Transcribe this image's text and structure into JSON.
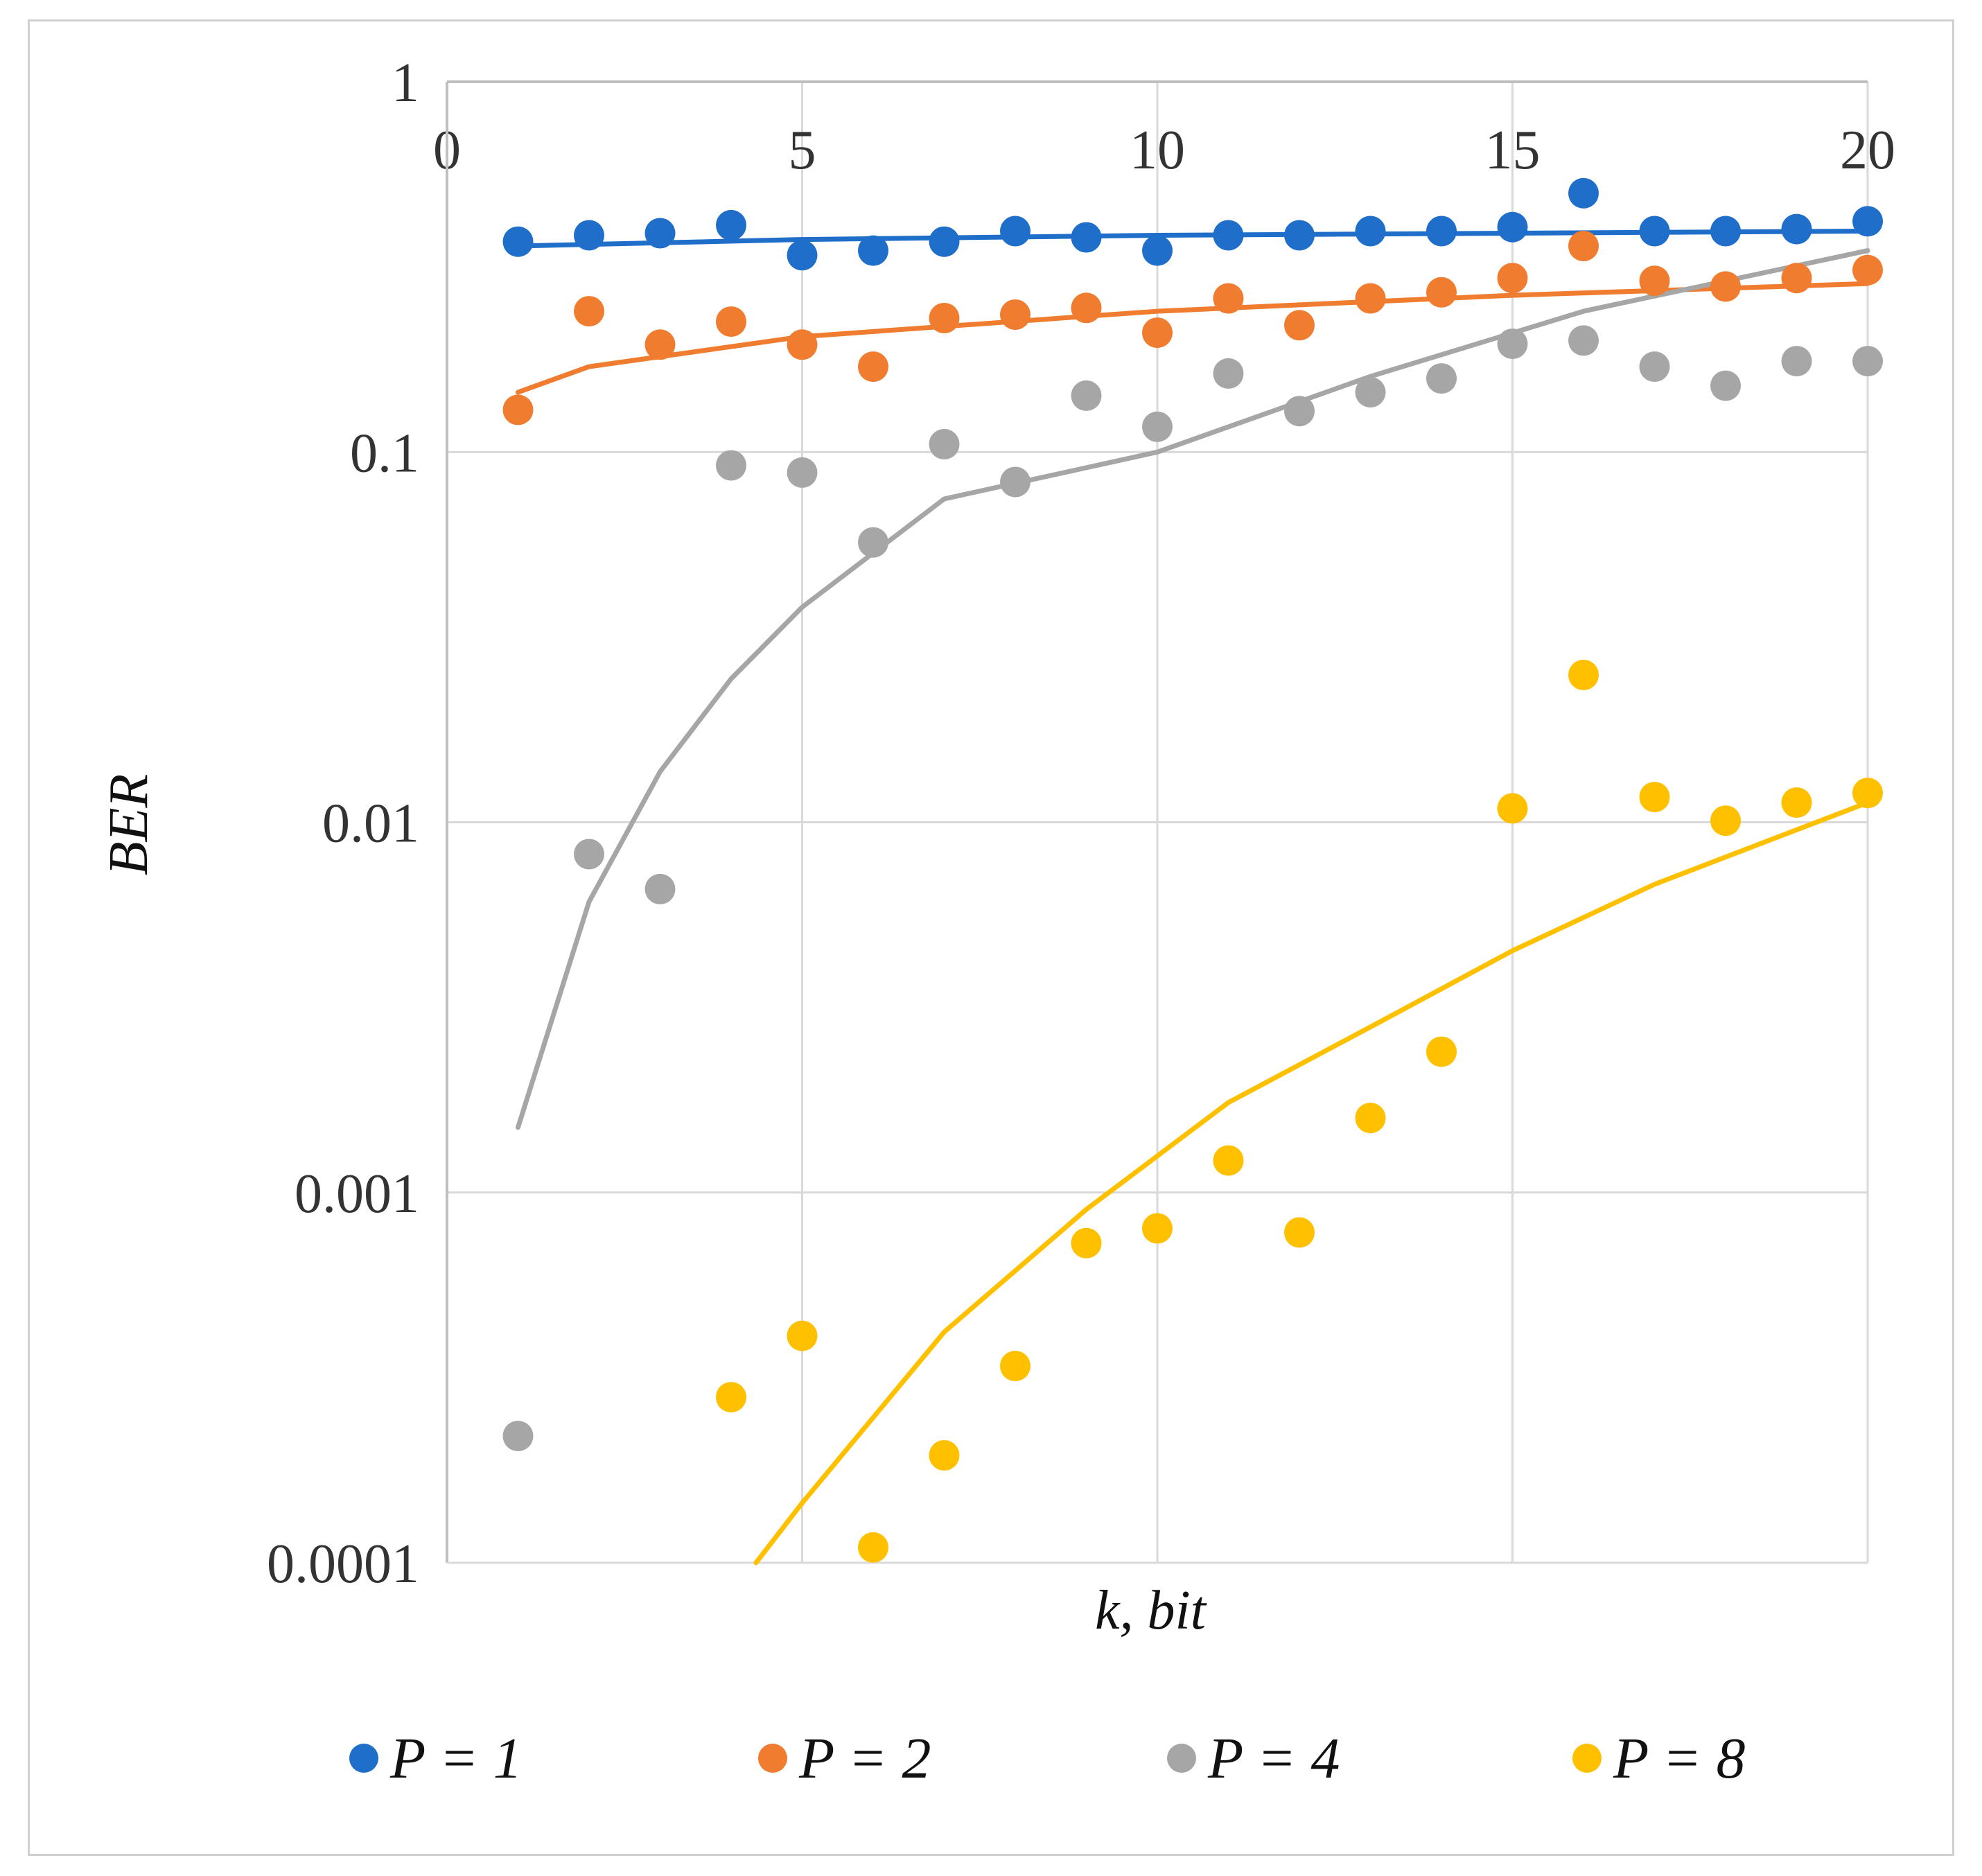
{
  "chart_data": {
    "type": "scatter",
    "title": "",
    "xlabel": "k, bit",
    "ylabel": "BER",
    "xlim": [
      0,
      20
    ],
    "ylim": [
      0.0001,
      1
    ],
    "yscale": "log",
    "x_ticks": [
      "0",
      "5",
      "10",
      "15",
      "20"
    ],
    "y_ticks": [
      "1",
      "0.1",
      "0.01",
      "0.001",
      "0.0001"
    ],
    "grid": true,
    "x_axis_position": "top",
    "legend_position": "bottom",
    "series": [
      {
        "name": "P = 1",
        "color": "#1f6ec9",
        "x": [
          1,
          2,
          3,
          4,
          5,
          6,
          7,
          8,
          9,
          10,
          11,
          12,
          13,
          14,
          15,
          16,
          17,
          18,
          19,
          20
        ],
        "values": [
          0.37,
          0.385,
          0.39,
          0.41,
          0.34,
          0.35,
          0.37,
          0.395,
          0.38,
          0.35,
          0.385,
          0.385,
          0.395,
          0.395,
          0.405,
          0.5,
          0.395,
          0.395,
          0.4,
          0.42
        ],
        "trendline": {
          "type": "log",
          "from": 1,
          "to": 20,
          "points": [
            [
              1,
              0.36
            ],
            [
              5,
              0.375
            ],
            [
              10,
              0.385
            ],
            [
              15,
              0.39
            ],
            [
              20,
              0.395
            ]
          ]
        }
      },
      {
        "name": "P = 2",
        "color": "#f07c2f",
        "x": [
          1,
          2,
          3,
          4,
          5,
          6,
          7,
          8,
          9,
          10,
          11,
          12,
          13,
          14,
          15,
          16,
          17,
          18,
          19,
          20
        ],
        "values": [
          0.13,
          0.24,
          0.195,
          0.225,
          0.195,
          0.17,
          0.23,
          0.235,
          0.245,
          0.21,
          0.26,
          0.22,
          0.26,
          0.27,
          0.295,
          0.36,
          0.29,
          0.28,
          0.295,
          0.31
        ],
        "trendline": {
          "type": "log",
          "from": 1,
          "to": 20,
          "points": [
            [
              1,
              0.145
            ],
            [
              2,
              0.17
            ],
            [
              5,
              0.205
            ],
            [
              10,
              0.24
            ],
            [
              15,
              0.265
            ],
            [
              20,
              0.285
            ]
          ]
        }
      },
      {
        "name": "P = 4",
        "color": "#a6a6a6",
        "x": [
          1,
          2,
          3,
          4,
          5,
          6,
          7,
          8,
          9,
          10,
          11,
          12,
          13,
          14,
          15,
          16,
          17,
          18,
          19,
          20
        ],
        "values": [
          0.00022,
          0.0082,
          0.0066,
          0.092,
          0.088,
          0.057,
          0.105,
          0.083,
          0.142,
          0.117,
          0.163,
          0.129,
          0.145,
          0.158,
          0.196,
          0.2,
          0.17,
          0.151,
          0.176,
          0.176
        ],
        "trendline": {
          "type": "power",
          "from": 1,
          "to": 20,
          "points": [
            [
              1,
              0.0015
            ],
            [
              2,
              0.0061
            ],
            [
              3,
              0.0137
            ],
            [
              4,
              0.0244
            ],
            [
              5,
              0.0381
            ],
            [
              7,
              0.0747
            ],
            [
              10,
              0.1
            ],
            [
              13,
              0.16
            ],
            [
              16,
              0.24
            ],
            [
              20,
              0.35
            ]
          ]
        }
      },
      {
        "name": "P = 8",
        "color": "#ffc000",
        "x": [
          4,
          5,
          6,
          7,
          8,
          9,
          10,
          11,
          12,
          13,
          14,
          15,
          16,
          17,
          18,
          19,
          20
        ],
        "values": [
          0.00028,
          0.00041,
          0.00011,
          0.000195,
          0.00034,
          0.00073,
          0.0008,
          0.00122,
          0.00078,
          0.00159,
          0.0024,
          0.0109,
          0.025,
          0.0117,
          0.0101,
          0.0113,
          0.012
        ],
        "trendline": {
          "type": "power",
          "from": 4.35,
          "to": 20,
          "points": [
            [
              4.35,
              0.0001
            ],
            [
              5,
              0.000145
            ],
            [
              7,
              0.00042
            ],
            [
              9,
              0.0009
            ],
            [
              11,
              0.00175
            ],
            [
              13,
              0.0028
            ],
            [
              15,
              0.0045
            ],
            [
              17,
              0.0068
            ],
            [
              20,
              0.0113
            ]
          ]
        }
      }
    ]
  }
}
